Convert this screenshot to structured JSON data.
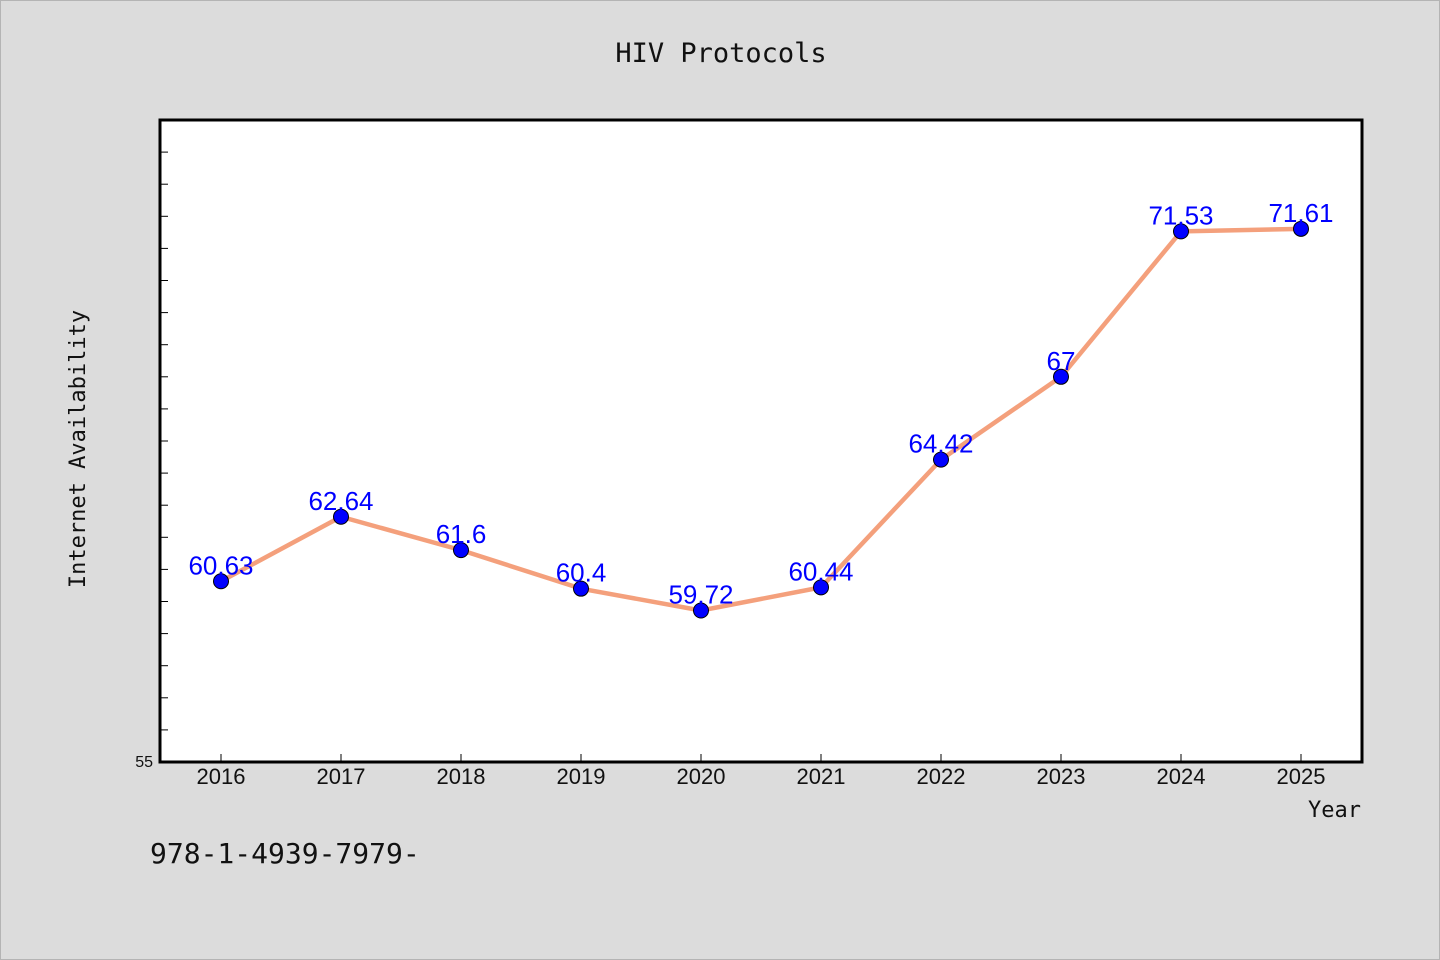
{
  "chart_data": {
    "type": "line",
    "title": "HIV Protocols",
    "xlabel": "Year",
    "ylabel": "Internet Availability",
    "categories": [
      "2016",
      "2017",
      "2018",
      "2019",
      "2020",
      "2021",
      "2022",
      "2023",
      "2024",
      "2025"
    ],
    "series": [
      {
        "values": [
          60.63,
          62.64,
          61.6,
          60.4,
          59.72,
          60.44,
          64.42,
          67,
          71.53,
          71.61
        ],
        "labels": [
          "60.63",
          "62.64",
          "61.6",
          "60.4",
          "59.72",
          "60.44",
          "64.42",
          "67",
          "71.53",
          "71.61"
        ],
        "line_color": "#f4a07c",
        "marker_color": "#0000ff"
      }
    ],
    "ylim": [
      55,
      75
    ],
    "y_tick_labels": [
      "55"
    ],
    "y_minor_tick_step": 1,
    "grid": false,
    "legend": "none",
    "label_color": "#0000ff",
    "background_color": "#dcdcdc",
    "plot_background_color": "#ffffff"
  },
  "footnote": "978-1-4939-7979-"
}
